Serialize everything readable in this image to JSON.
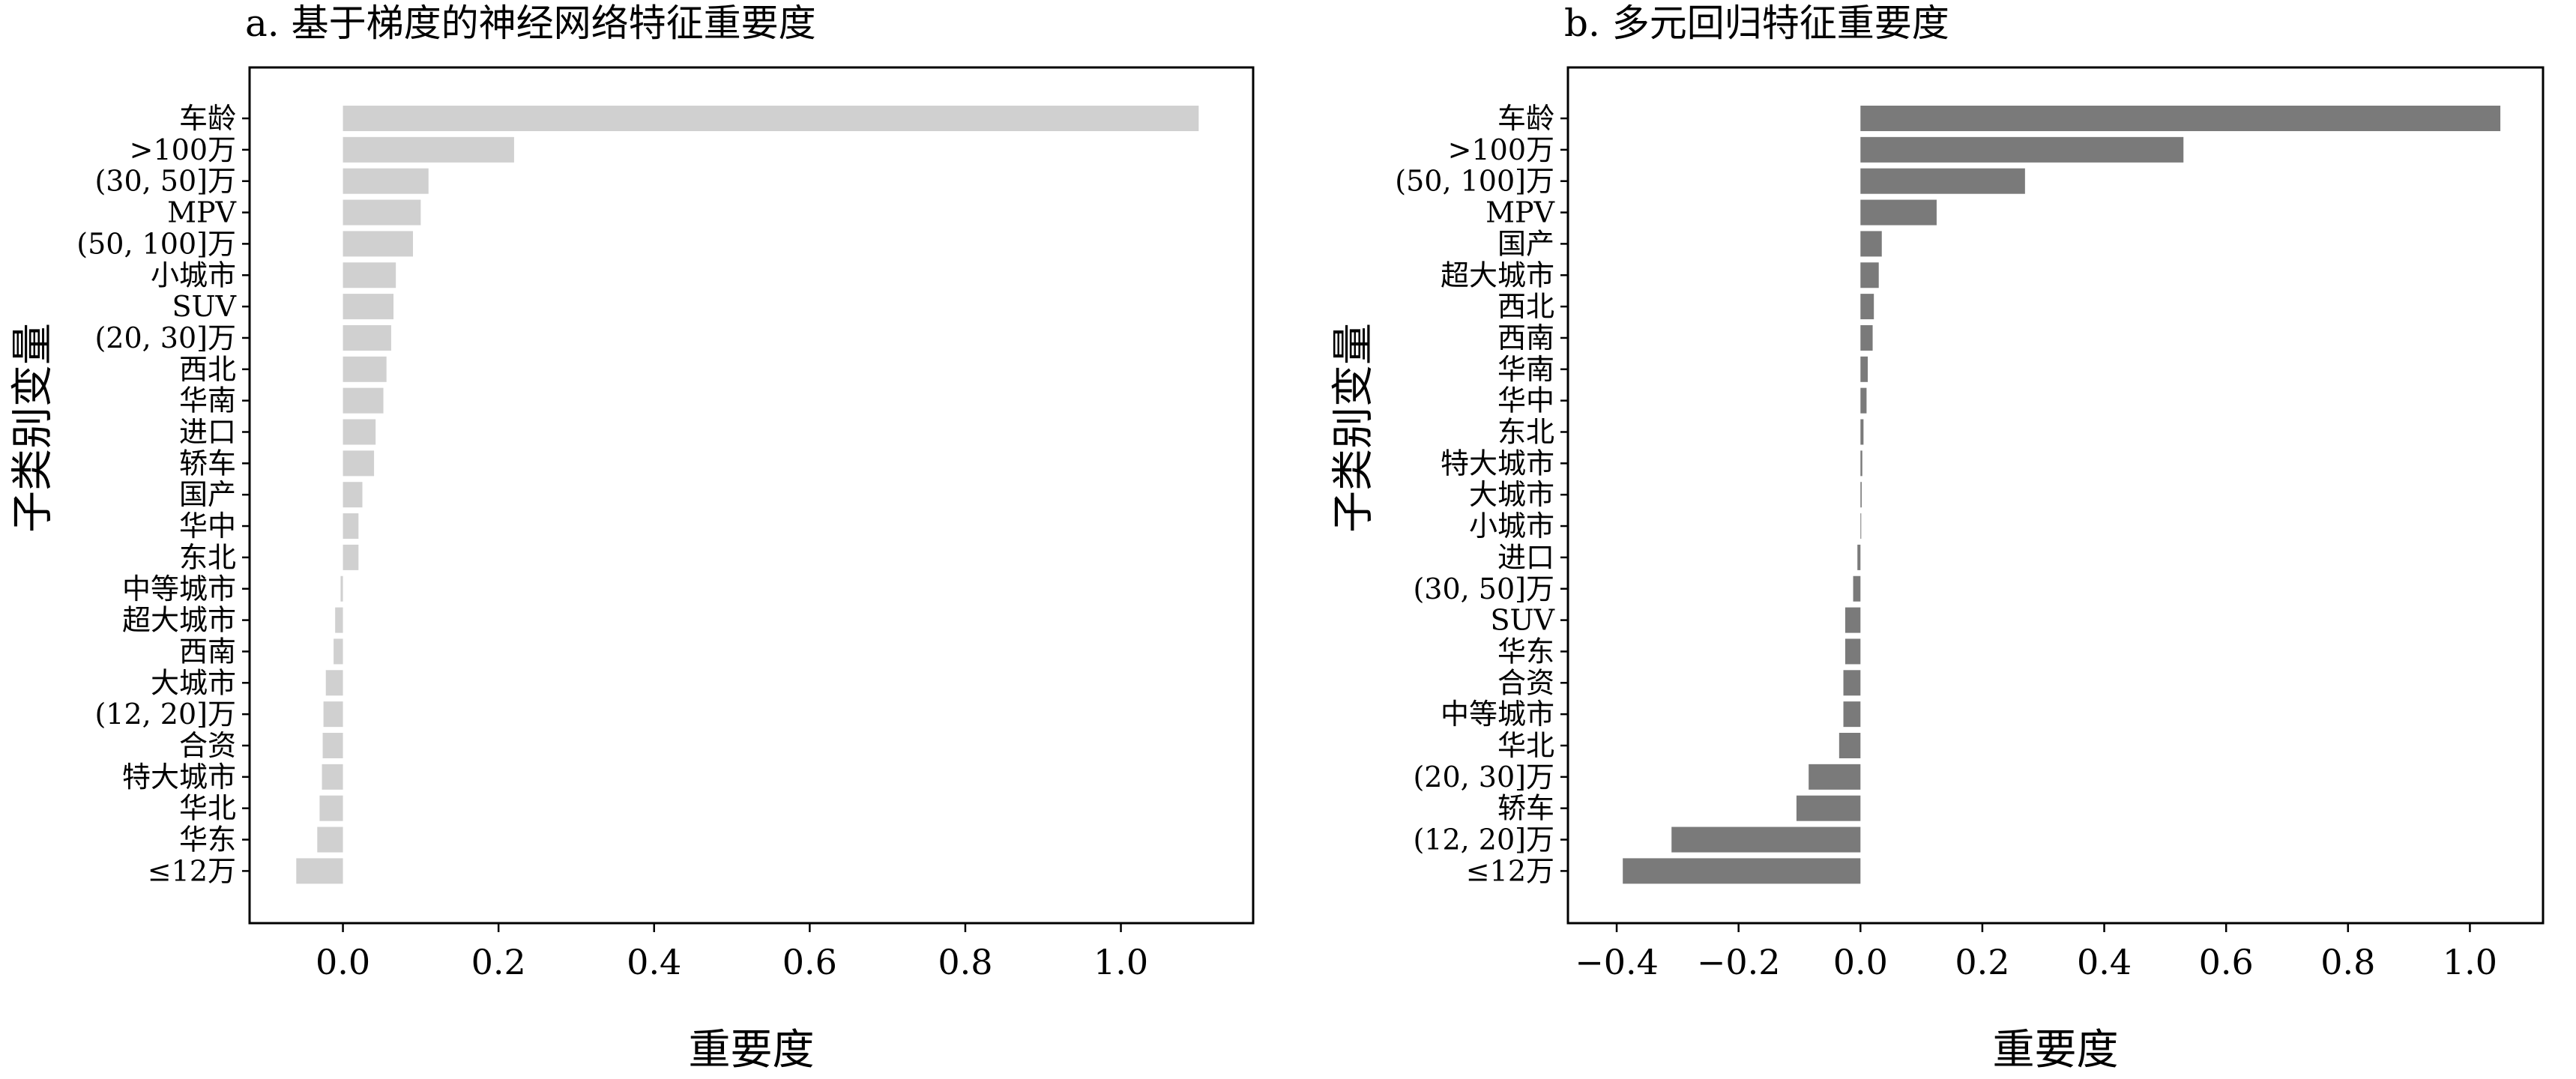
{
  "chart_data": [
    {
      "type": "bar",
      "orientation": "horizontal",
      "title": "a. 基于梯度的神经网络特征重要度",
      "xlabel": "重要度",
      "ylabel": "子类别变量",
      "xlim": [
        -0.12,
        1.17
      ],
      "xticks": [
        "0.0",
        "0.2",
        "0.4",
        "0.6",
        "0.8",
        "1.0"
      ],
      "xtick_values": [
        0.0,
        0.2,
        0.4,
        0.6,
        0.8,
        1.0
      ],
      "bar_color": "#d0d0d0",
      "grid": false,
      "categories": [
        "车龄",
        ">100万",
        "(30, 50]万",
        "MPV",
        "(50, 100]万",
        "小城市",
        "SUV",
        "(20, 30]万",
        "西北",
        "华南",
        "进口",
        "轿车",
        "国产",
        "华中",
        "东北",
        "中等城市",
        "超大城市",
        "西南",
        "大城市",
        "(12, 20]万",
        "合资",
        "特大城市",
        "华北",
        "华东",
        "≤12万"
      ],
      "values": [
        1.1,
        0.22,
        0.11,
        0.1,
        0.09,
        0.068,
        0.065,
        0.062,
        0.056,
        0.052,
        0.042,
        0.04,
        0.025,
        0.02,
        0.02,
        -0.003,
        -0.01,
        -0.012,
        -0.022,
        -0.025,
        -0.026,
        -0.027,
        -0.03,
        -0.033,
        -0.06
      ]
    },
    {
      "type": "bar",
      "orientation": "horizontal",
      "title": "b. 多元回归特征重要度",
      "xlabel": "重要度",
      "ylabel": "子类别变量",
      "xlim": [
        -0.48,
        1.12
      ],
      "xticks": [
        "−0.4",
        "−0.2",
        "0.0",
        "0.2",
        "0.4",
        "0.6",
        "0.8",
        "1.0"
      ],
      "xtick_values": [
        -0.4,
        -0.2,
        0.0,
        0.2,
        0.4,
        0.6,
        0.8,
        1.0
      ],
      "bar_color": "#7a7a7a",
      "grid": false,
      "categories": [
        "车龄",
        ">100万",
        "(50, 100]万",
        "MPV",
        "国产",
        "超大城市",
        "西北",
        "西南",
        "华南",
        "华中",
        "东北",
        "特大城市",
        "大城市",
        "小城市",
        "进口",
        "(30, 50]万",
        "SUV",
        "华东",
        "合资",
        "中等城市",
        "华北",
        "(20, 30]万",
        "轿车",
        "(12, 20]万",
        "≤12万"
      ],
      "values": [
        1.05,
        0.53,
        0.27,
        0.125,
        0.035,
        0.03,
        0.022,
        0.02,
        0.012,
        0.01,
        0.005,
        0.003,
        0.002,
        0.0,
        -0.005,
        -0.012,
        -0.025,
        -0.025,
        -0.028,
        -0.028,
        -0.035,
        -0.085,
        -0.105,
        -0.31,
        -0.39
      ]
    }
  ]
}
